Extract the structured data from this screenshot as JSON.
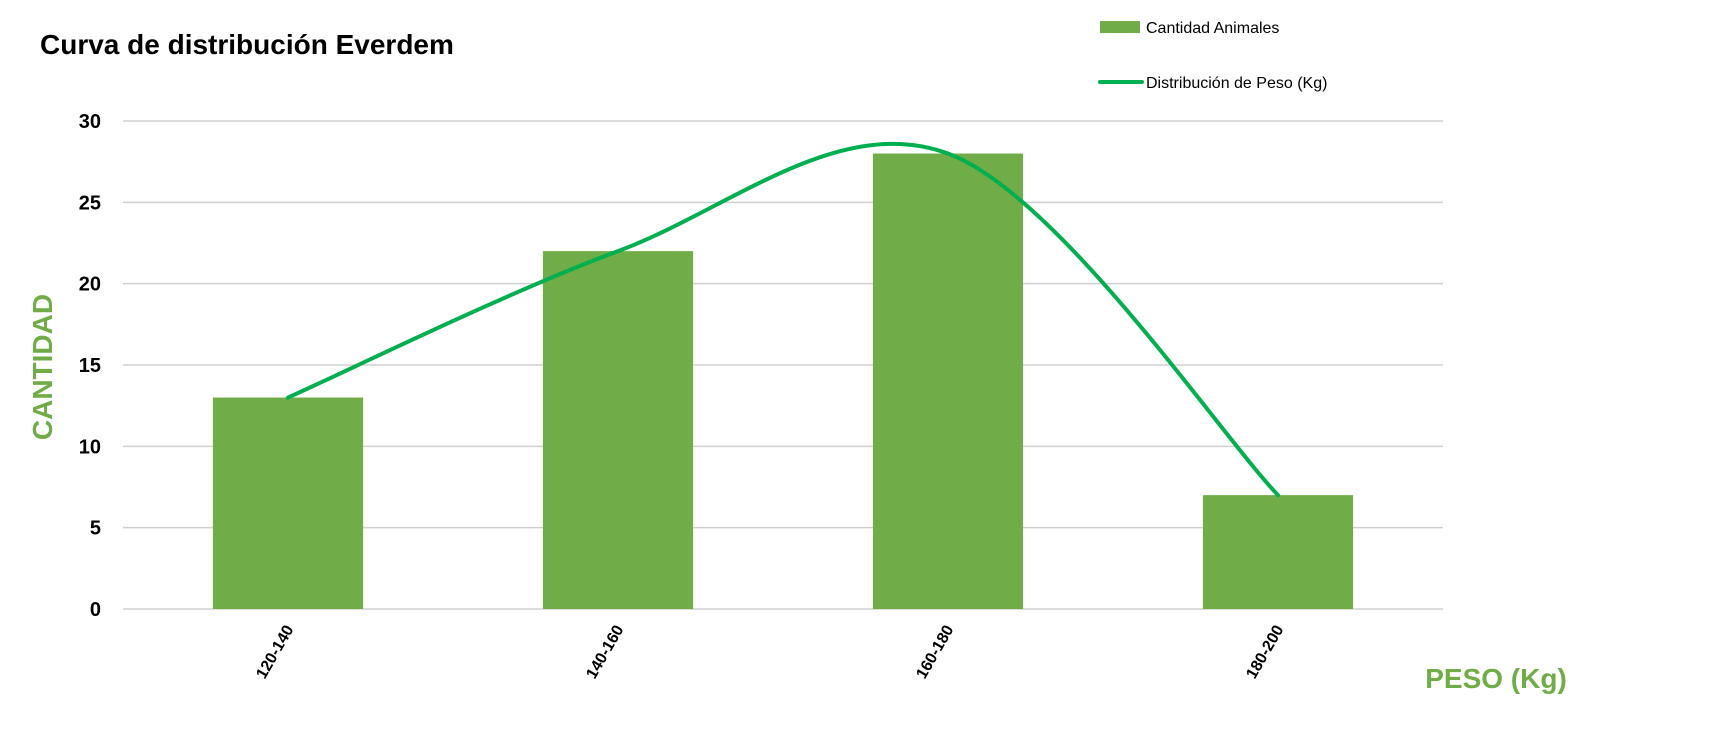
{
  "chart_data": {
    "type": "bar",
    "title": "Curva de distribución Everdem",
    "xlabel": "PESO (Kg)",
    "ylabel": "CANTIDAD",
    "categories": [
      "120-140",
      "140-160",
      "160-180",
      "180-200"
    ],
    "series": [
      {
        "name": "Cantidad Animales",
        "type": "bar",
        "color": "#70ad47",
        "values": [
          13,
          22,
          28,
          7
        ]
      },
      {
        "name": "Distribución de Peso (Kg)",
        "type": "line",
        "smooth": true,
        "color": "#00b050",
        "values": [
          13,
          22,
          28,
          7
        ]
      }
    ],
    "ylim": [
      0,
      30
    ],
    "yticks": [
      0,
      5,
      10,
      15,
      20,
      25,
      30
    ],
    "grid": true,
    "legend": "top-right",
    "colors": {
      "axis_label": "#70ad47"
    }
  }
}
